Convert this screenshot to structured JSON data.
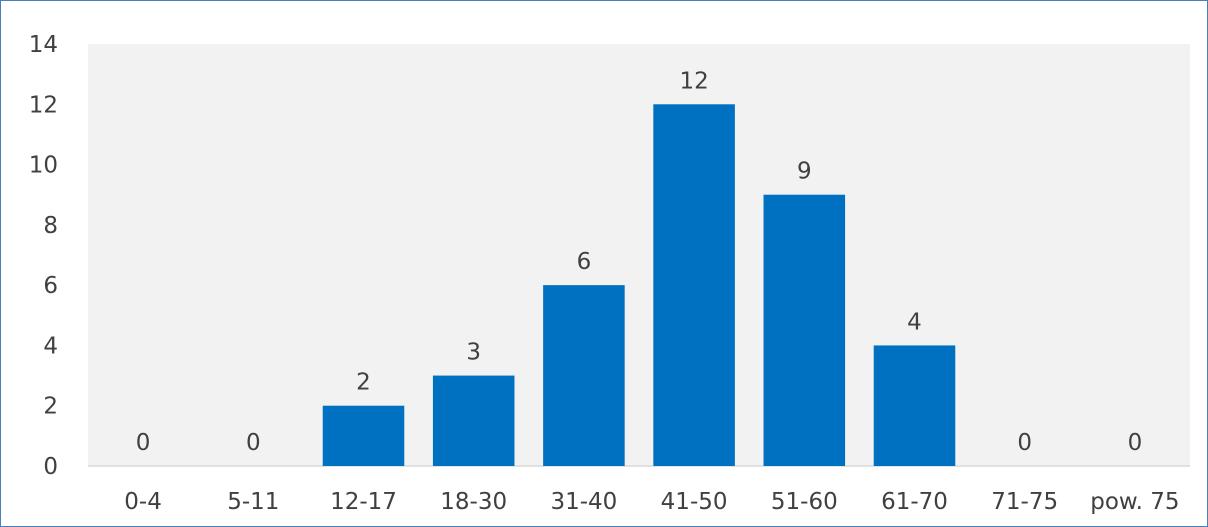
{
  "chart_data": {
    "type": "bar",
    "categories": [
      "0-4",
      "5-11",
      "12-17",
      "18-30",
      "31-40",
      "41-50",
      "51-60",
      "61-70",
      "71-75",
      "pow. 75"
    ],
    "values": [
      0,
      0,
      2,
      3,
      6,
      12,
      9,
      4,
      0,
      0
    ],
    "ylim": [
      0,
      14
    ],
    "yticks": [
      0,
      2,
      4,
      6,
      8,
      10,
      12,
      14
    ],
    "title": "",
    "xlabel": "",
    "ylabel": "",
    "grid": false,
    "legend": false,
    "data_labels": true,
    "colors": {
      "bar": "#0070c0",
      "plot_area": "#f2f2f2",
      "axis_line": "#d9d9d9",
      "text": "#404040",
      "border": "#4a7ebb"
    }
  }
}
